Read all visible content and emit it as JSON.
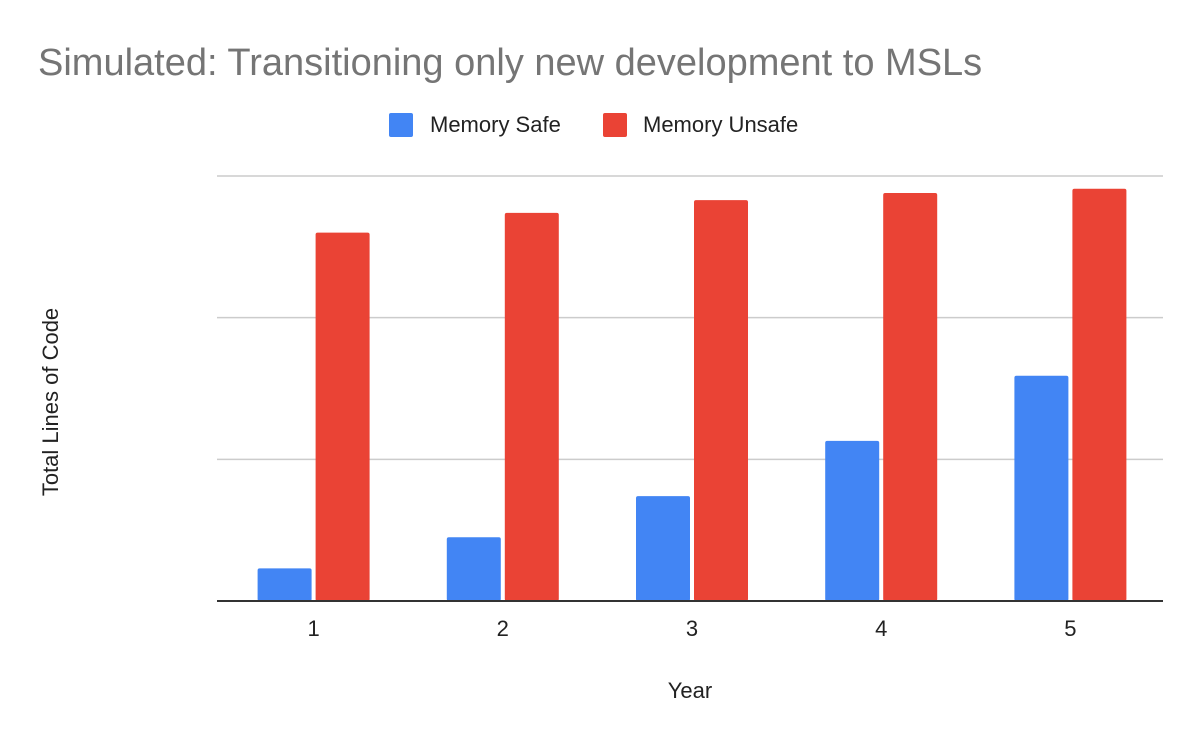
{
  "chart_data": {
    "type": "bar",
    "title": "Simulated: Transitioning only new development to MSLs",
    "xlabel": "Year",
    "ylabel": "Total Lines of Code",
    "categories": [
      "1",
      "2",
      "3",
      "4",
      "5"
    ],
    "series": [
      {
        "name": "Memory Safe",
        "color": "#4285f4",
        "values": [
          0.23,
          0.45,
          0.74,
          1.13,
          1.59
        ]
      },
      {
        "name": "Memory Unsafe",
        "color": "#ea4335",
        "values": [
          2.6,
          2.74,
          2.83,
          2.88,
          2.91
        ]
      }
    ],
    "ylim": [
      0,
      3
    ],
    "y_tick_labels_shown": false,
    "grid": true,
    "legend_position": "top"
  }
}
